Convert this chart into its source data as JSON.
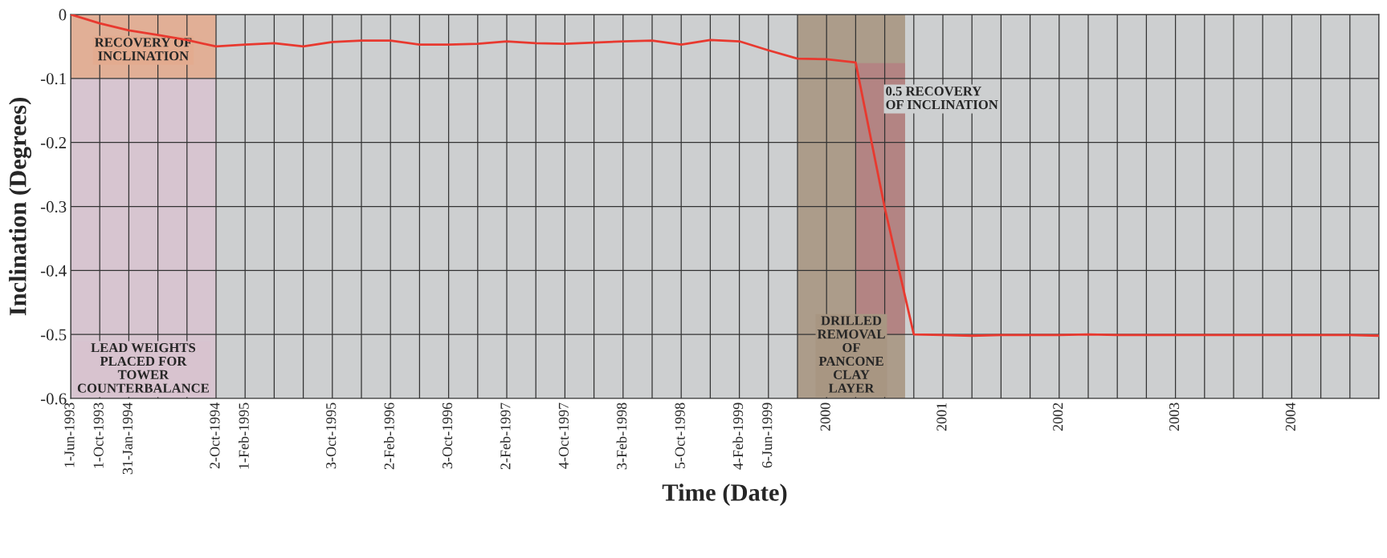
{
  "chart_data": {
    "type": "line",
    "xlabel": "Time (Date)",
    "ylabel": "Inclination (Degrees)",
    "ylim": [
      -0.6,
      0
    ],
    "yticks": [
      0,
      -0.1,
      -0.2,
      -0.3,
      -0.4,
      -0.5,
      -0.6
    ],
    "categories": [
      "1-Jun-1993",
      "1-Oct-1993",
      "31-Jan-1994",
      null,
      null,
      "2-Oct-1994",
      "1-Feb-1995",
      null,
      null,
      "3-Oct-1995",
      null,
      "2-Feb-1996",
      null,
      "3-Oct-1996",
      null,
      "2-Feb-1997",
      null,
      "4-Oct-1997",
      null,
      "3-Feb-1998",
      null,
      "5-Oct-1998",
      null,
      "4-Feb-1999",
      "6-Jun-1999",
      null,
      "2000",
      null,
      null,
      null,
      "2001",
      null,
      null,
      null,
      "2002",
      null,
      null,
      null,
      "2003",
      null,
      null,
      null,
      "2004",
      null,
      null,
      null
    ],
    "grid": true,
    "annotations": [
      "LEAD WEIGHTS\nPLACED FOR\nTOWER\nCOUNTERBALANCE",
      "RECOVERY OF\nINCLINATION",
      "DRILLED\nREMOVAL\nOF\nPANCONE\nCLAY\nLAYER",
      "0.5 RECOVERY\nOF INCLINATION"
    ],
    "series": [
      {
        "color": "#e8392f",
        "values": [
          0,
          -0.014,
          -0.025,
          -0.032,
          -0.04,
          -0.05,
          -0.047,
          -0.045,
          -0.05,
          -0.043,
          -0.041,
          -0.041,
          -0.047,
          -0.047,
          -0.046,
          -0.042,
          -0.045,
          -0.046,
          -0.044,
          -0.042,
          -0.041,
          -0.047,
          -0.04,
          -0.042,
          -0.056,
          -0.069,
          -0.07,
          -0.075,
          -0.302,
          -0.5,
          -0.501,
          -0.502,
          -0.501,
          -0.501,
          -0.501,
          -0.5,
          -0.501,
          -0.501,
          -0.501,
          -0.501,
          -0.501,
          -0.501,
          -0.501,
          -0.501,
          -0.501,
          -0.502
        ]
      }
    ]
  }
}
